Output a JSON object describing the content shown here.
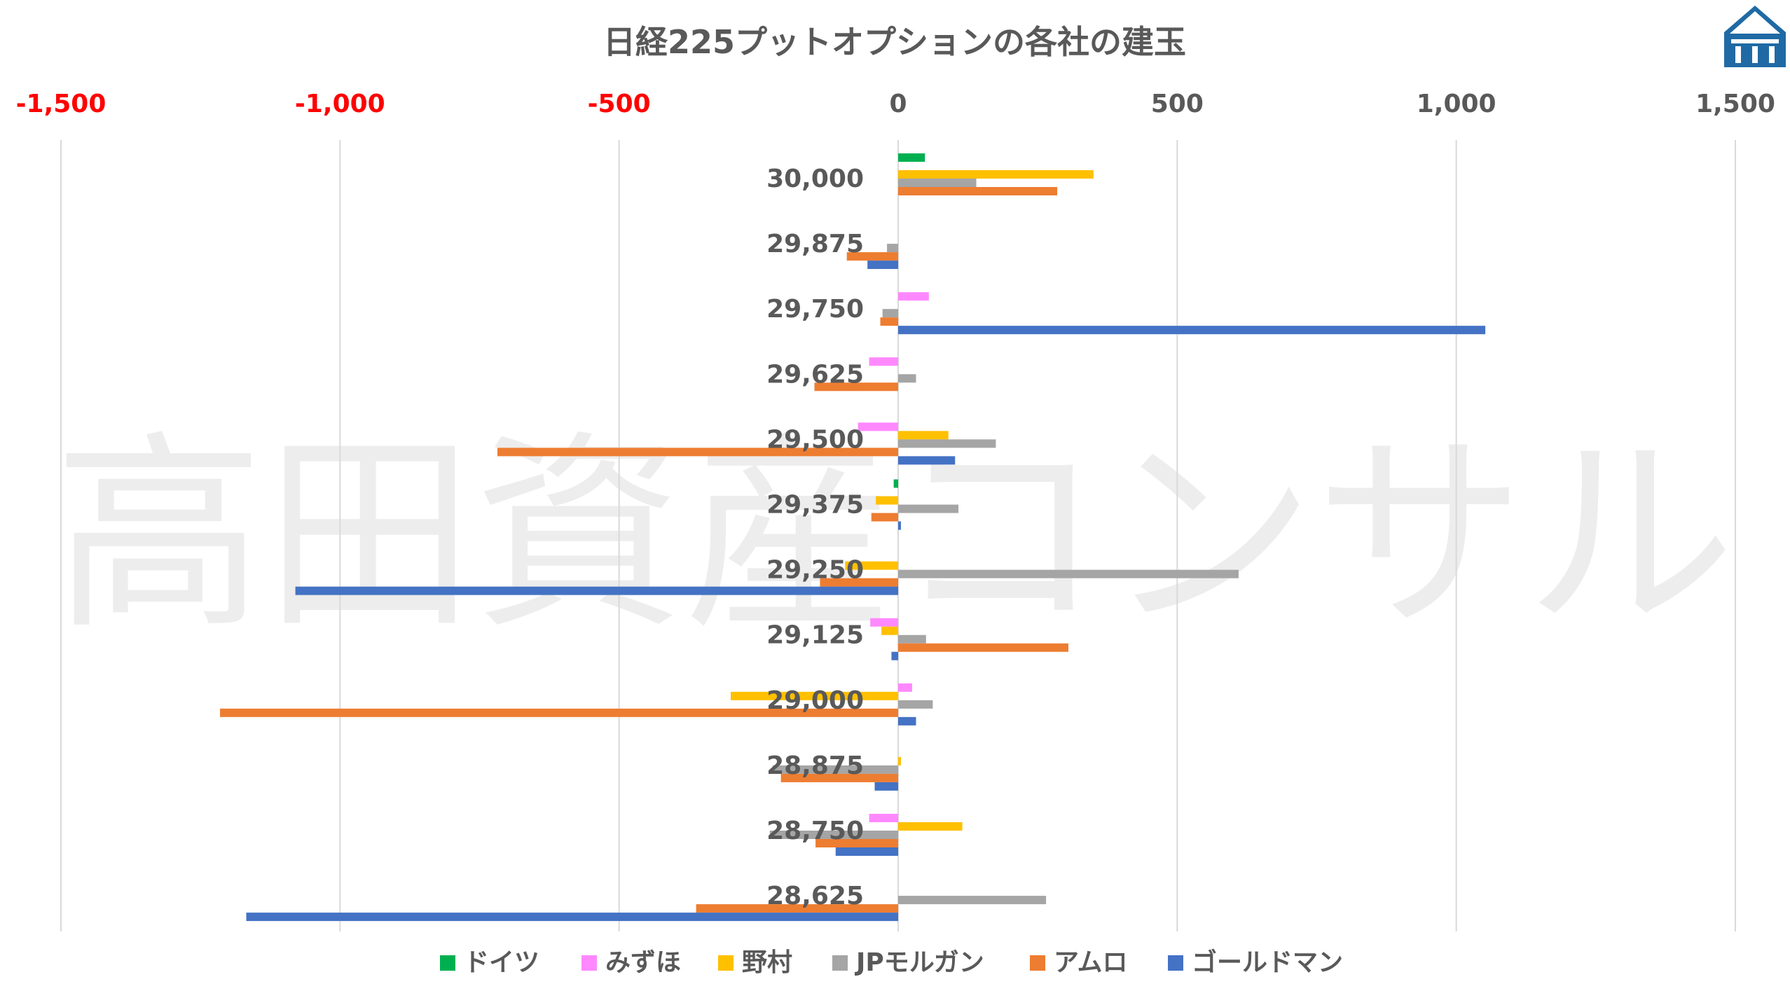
{
  "chart_data": {
    "type": "bar",
    "orientation": "horizontal",
    "title": "日経225プットオプションの各社の建玉",
    "watermark": "高田資産コンサル",
    "xlim": [
      -1500,
      1500
    ],
    "x_ticks": [
      {
        "value": -1500,
        "label": "-1,500",
        "color": "#ff0000"
      },
      {
        "value": -1000,
        "label": "-1,000",
        "color": "#ff0000"
      },
      {
        "value": -500,
        "label": "-500",
        "color": "#ff0000"
      },
      {
        "value": 0,
        "label": "0",
        "color": "#595959"
      },
      {
        "value": 500,
        "label": "500",
        "color": "#595959"
      },
      {
        "value": 1000,
        "label": "1,000",
        "color": "#595959"
      },
      {
        "value": 1500,
        "label": "1,500",
        "color": "#595959"
      }
    ],
    "categories": [
      "30,000",
      "29,875",
      "29,750",
      "29,625",
      "29,500",
      "29,375",
      "29,250",
      "29,125",
      "29,000",
      "28,875",
      "28,750",
      "28,625"
    ],
    "series": [
      {
        "name": "ドイツ",
        "color": "#00b050",
        "values": [
          48,
          0,
          0,
          0,
          0,
          -8,
          0,
          0,
          0,
          0,
          0,
          0
        ]
      },
      {
        "name": "みずほ",
        "color": "#ff88ff",
        "values": [
          0,
          0,
          55,
          -52,
          -72,
          0,
          0,
          -50,
          25,
          0,
          -52,
          0
        ]
      },
      {
        "name": "野村",
        "color": "#ffc000",
        "values": [
          350,
          0,
          0,
          0,
          90,
          -40,
          -95,
          -30,
          -300,
          5,
          115,
          0
        ]
      },
      {
        "name": "JPモルガン",
        "color": "#a5a5a5",
        "values": [
          140,
          -20,
          -28,
          32,
          175,
          108,
          610,
          50,
          62,
          -225,
          -230,
          265
        ]
      },
      {
        "name": "アムロ",
        "color": "#ed7d31",
        "values": [
          285,
          -92,
          -32,
          -150,
          -718,
          -48,
          -140,
          305,
          -1215,
          -210,
          -148,
          -362
        ]
      },
      {
        "name": "ゴールドマン",
        "color": "#4472c4",
        "values": [
          0,
          -55,
          1052,
          0,
          102,
          5,
          -1080,
          -12,
          32,
          -42,
          -112,
          -1168
        ]
      }
    ]
  }
}
